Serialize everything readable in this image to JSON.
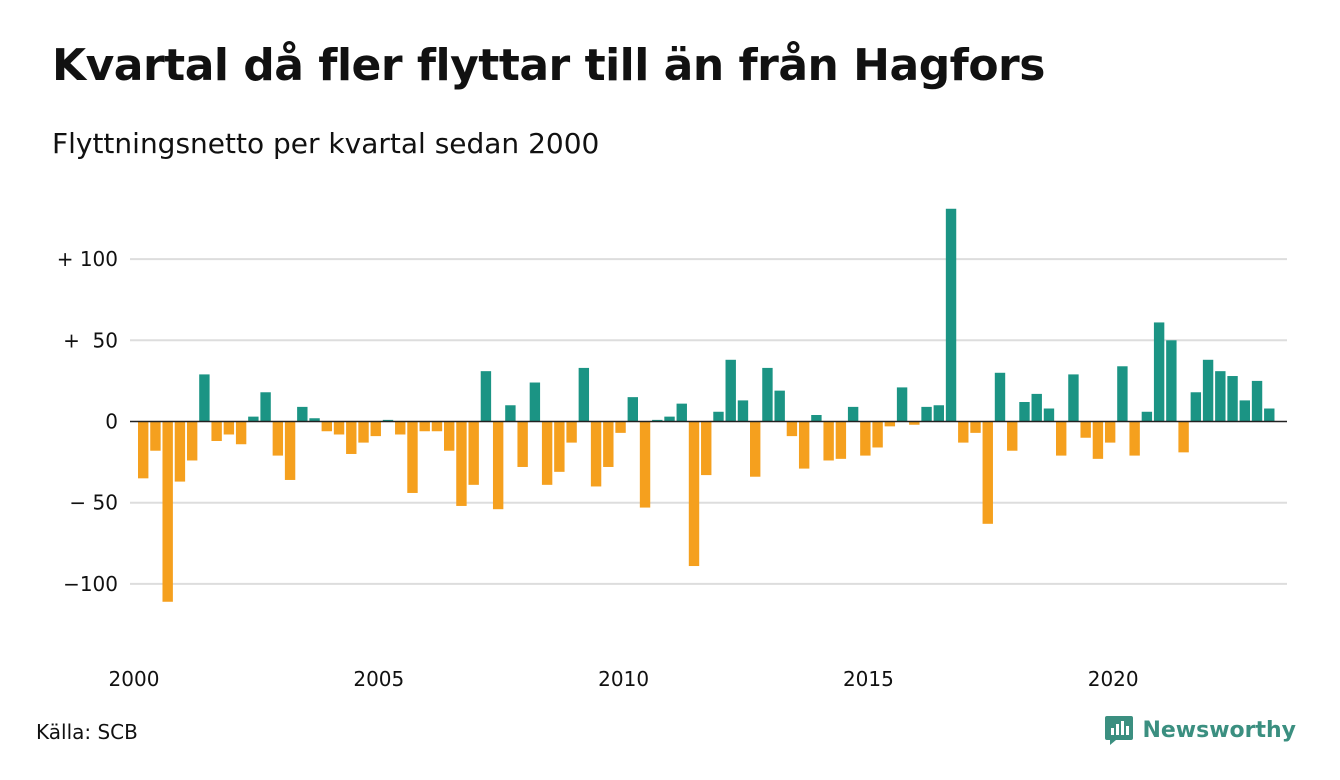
{
  "title": "Kvartal då fler flyttar till än från Hagfors",
  "subtitle": "Flyttningsnetto per kvartal sedan 2000",
  "source": "Källa: SCB",
  "brand": "Newsworthy",
  "brand_icon": "newsworthy-logo-icon",
  "colors": {
    "positive": "#1b9484",
    "negative": "#f5a01e",
    "grid": "#dddddd",
    "brand": "#3b8f80"
  },
  "chart_data": {
    "type": "bar",
    "title": "Kvartal då fler flyttar till än från Hagfors",
    "subtitle": "Flyttningsnetto per kvartal sedan 2000",
    "x_start": "2000 Q1",
    "x_ticks": [
      "2000",
      "2005",
      "2010",
      "2015",
      "2020"
    ],
    "y_ticks": [
      {
        "value": 100,
        "label": "+ 100"
      },
      {
        "value": 50,
        "label": "+  50"
      },
      {
        "value": 0,
        "label": "0"
      },
      {
        "value": -50,
        "label": "− 50"
      },
      {
        "value": -100,
        "label": "−100"
      }
    ],
    "ylim": [
      -125,
      135
    ],
    "grid": true,
    "values": [
      -35,
      -18,
      -111,
      -37,
      -24,
      29,
      -12,
      -8,
      -14,
      3,
      18,
      -21,
      -36,
      9,
      2,
      -6,
      -8,
      -20,
      -13,
      -9,
      1,
      -8,
      -44,
      -6,
      -6,
      -18,
      -52,
      -39,
      31,
      -54,
      10,
      -28,
      24,
      -39,
      -31,
      -13,
      33,
      -40,
      -28,
      -7,
      15,
      -53,
      1,
      3,
      11,
      -89,
      -33,
      6,
      38,
      13,
      -34,
      33,
      19,
      -9,
      -29,
      4,
      -24,
      -23,
      9,
      -21,
      -16,
      -3,
      21,
      -2,
      9,
      10,
      131,
      -13,
      -7,
      -63,
      30,
      -18,
      12,
      17,
      8,
      -21,
      29,
      -10,
      -23,
      -13,
      34,
      -21,
      6,
      61,
      50,
      -19,
      18,
      38,
      31,
      28,
      13,
      25,
      8
    ]
  }
}
